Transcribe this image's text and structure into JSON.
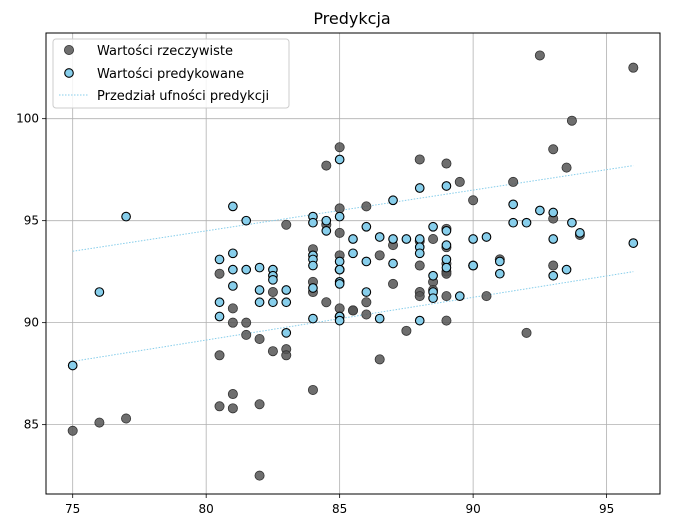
{
  "chart_data": {
    "type": "scatter",
    "title": "Predykcja",
    "xlabel": "",
    "ylabel": "",
    "xlim": [
      74.0,
      97.0
    ],
    "ylim": [
      81.6,
      104.2
    ],
    "xticks": [
      75,
      80,
      85,
      90,
      95
    ],
    "yticks": [
      85,
      90,
      95,
      100
    ],
    "grid": true,
    "legend_position": "top-left",
    "legend": [
      {
        "label": "Wartości rzeczywiste",
        "kind": "marker",
        "color": "#555555"
      },
      {
        "label": "Wartości predykowane",
        "kind": "marker",
        "color": "#87ceeb"
      },
      {
        "label": "Przedział ufności predykcji",
        "kind": "line",
        "color": "#87ceeb"
      }
    ],
    "colors": {
      "actual": "#555555",
      "predicted": "#87ceeb",
      "interval": "#87ceeb",
      "edge": "#000000"
    },
    "series": [
      {
        "name": "Wartości rzeczywiste",
        "points": [
          [
            75,
            84.7
          ],
          [
            76,
            85.1
          ],
          [
            77,
            85.3
          ],
          [
            80.5,
            92.4
          ],
          [
            80.5,
            88.4
          ],
          [
            80.5,
            85.9
          ],
          [
            81,
            90.7
          ],
          [
            81,
            90.0
          ],
          [
            81,
            86.5
          ],
          [
            81,
            85.8
          ],
          [
            81.5,
            90.0
          ],
          [
            81.5,
            89.4
          ],
          [
            82,
            89.2
          ],
          [
            82,
            86.0
          ],
          [
            82,
            82.5
          ],
          [
            82.5,
            91.5
          ],
          [
            82.5,
            88.6
          ],
          [
            83,
            94.8
          ],
          [
            83,
            88.7
          ],
          [
            83,
            88.4
          ],
          [
            84,
            93.6
          ],
          [
            84,
            92.0
          ],
          [
            84,
            91.5
          ],
          [
            84,
            86.7
          ],
          [
            84.5,
            97.7
          ],
          [
            84.5,
            91.0
          ],
          [
            84.5,
            94.8
          ],
          [
            85,
            98.6
          ],
          [
            85,
            95.6
          ],
          [
            85,
            94.4
          ],
          [
            85,
            93.3
          ],
          [
            85,
            92.6
          ],
          [
            85,
            90.7
          ],
          [
            85,
            90.3
          ],
          [
            85.5,
            90.6
          ],
          [
            85.5,
            90.6
          ],
          [
            86,
            95.7
          ],
          [
            86,
            91.0
          ],
          [
            86,
            90.4
          ],
          [
            86.5,
            93.3
          ],
          [
            86.5,
            88.2
          ],
          [
            87,
            93.8
          ],
          [
            87,
            91.9
          ],
          [
            87.5,
            89.6
          ],
          [
            88,
            98.0
          ],
          [
            88,
            94.0
          ],
          [
            88,
            92.8
          ],
          [
            88,
            91.5
          ],
          [
            88,
            91.3
          ],
          [
            88.5,
            94.1
          ],
          [
            88.5,
            92.0
          ],
          [
            88.5,
            91.6
          ],
          [
            89,
            97.8
          ],
          [
            89,
            94.6
          ],
          [
            89,
            93.7
          ],
          [
            89,
            92.9
          ],
          [
            89,
            92.5
          ],
          [
            89,
            92.4
          ],
          [
            89,
            91.3
          ],
          [
            89,
            90.1
          ],
          [
            89.5,
            96.9
          ],
          [
            90,
            96.0
          ],
          [
            90,
            92.8
          ],
          [
            90.5,
            91.3
          ],
          [
            91,
            93.1
          ],
          [
            91.5,
            96.9
          ],
          [
            92,
            89.5
          ],
          [
            92.5,
            103.1
          ],
          [
            93,
            98.5
          ],
          [
            93,
            95.1
          ],
          [
            93,
            92.8
          ],
          [
            93.5,
            97.6
          ],
          [
            93.7,
            99.9
          ],
          [
            94,
            94.3
          ],
          [
            96,
            102.5
          ]
        ]
      },
      {
        "name": "Wartości predykowane",
        "points": [
          [
            75,
            87.9
          ],
          [
            76,
            91.5
          ],
          [
            77,
            95.2
          ],
          [
            80.5,
            93.1
          ],
          [
            80.5,
            91.0
          ],
          [
            80.5,
            90.3
          ],
          [
            81,
            95.7
          ],
          [
            81,
            93.4
          ],
          [
            81,
            92.6
          ],
          [
            81,
            91.8
          ],
          [
            81.5,
            95.0
          ],
          [
            81.5,
            92.6
          ],
          [
            82,
            92.7
          ],
          [
            82,
            91.6
          ],
          [
            82,
            91.0
          ],
          [
            82.5,
            92.6
          ],
          [
            82.5,
            92.3
          ],
          [
            82.5,
            92.1
          ],
          [
            82.5,
            91.0
          ],
          [
            83,
            91.6
          ],
          [
            83,
            91.0
          ],
          [
            83,
            89.5
          ],
          [
            84,
            95.2
          ],
          [
            84,
            94.9
          ],
          [
            84,
            93.3
          ],
          [
            84,
            93.1
          ],
          [
            84,
            92.8
          ],
          [
            84,
            91.7
          ],
          [
            84,
            90.2
          ],
          [
            84.5,
            95.0
          ],
          [
            84.5,
            94.5
          ],
          [
            85,
            98.0
          ],
          [
            85,
            95.2
          ],
          [
            85,
            93.0
          ],
          [
            85,
            92.6
          ],
          [
            85,
            92.0
          ],
          [
            85,
            91.9
          ],
          [
            85,
            90.3
          ],
          [
            85,
            90.1
          ],
          [
            85.5,
            94.1
          ],
          [
            85.5,
            93.4
          ],
          [
            86,
            94.7
          ],
          [
            86,
            93.0
          ],
          [
            86,
            91.5
          ],
          [
            86.5,
            94.2
          ],
          [
            86.5,
            90.2
          ],
          [
            87,
            96.0
          ],
          [
            87,
            94.1
          ],
          [
            87,
            92.9
          ],
          [
            87.5,
            94.1
          ],
          [
            88,
            96.6
          ],
          [
            88,
            94.1
          ],
          [
            88,
            93.7
          ],
          [
            88,
            93.4
          ],
          [
            88,
            90.1
          ],
          [
            88.5,
            94.7
          ],
          [
            88.5,
            92.3
          ],
          [
            88.5,
            91.5
          ],
          [
            88.5,
            91.2
          ],
          [
            89,
            96.7
          ],
          [
            89,
            94.5
          ],
          [
            89,
            93.8
          ],
          [
            89,
            93.1
          ],
          [
            89,
            92.7
          ],
          [
            89.5,
            91.3
          ],
          [
            90,
            94.1
          ],
          [
            90,
            92.8
          ],
          [
            90.5,
            94.2
          ],
          [
            91,
            93.0
          ],
          [
            91,
            92.4
          ],
          [
            91.5,
            95.8
          ],
          [
            91.5,
            94.9
          ],
          [
            92,
            94.9
          ],
          [
            92.5,
            95.5
          ],
          [
            93,
            95.4
          ],
          [
            93,
            94.1
          ],
          [
            93,
            92.3
          ],
          [
            93.5,
            92.6
          ],
          [
            93.7,
            94.9
          ],
          [
            94,
            94.4
          ],
          [
            96,
            93.9
          ]
        ]
      },
      {
        "name": "Przedział ufności predykcji",
        "bands": [
          [
            [
              75,
              93.5
            ],
            [
              96,
              97.7
            ]
          ],
          [
            [
              75,
              88.1
            ],
            [
              96,
              92.5
            ]
          ]
        ]
      }
    ]
  }
}
